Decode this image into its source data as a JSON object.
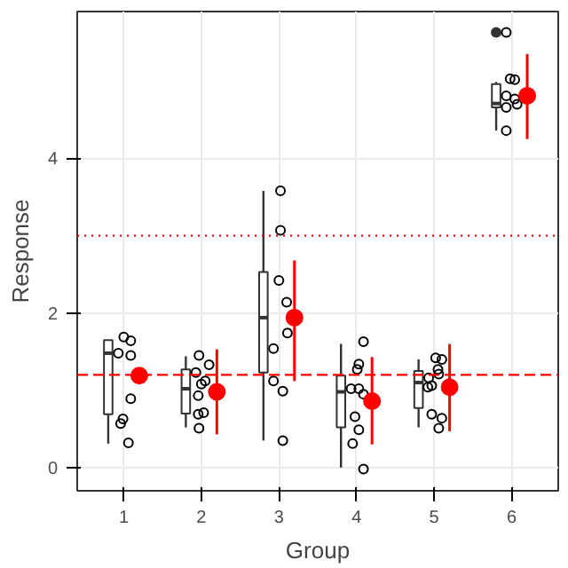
{
  "chart_data": {
    "type": "scatter",
    "xlabel": "Group",
    "ylabel": "Response",
    "xlim": [
      0.4,
      6.6
    ],
    "ylim": [
      -0.3,
      5.9
    ],
    "xticks": [
      1,
      2,
      3,
      4,
      5,
      6
    ],
    "yticks": [
      0,
      2,
      4
    ],
    "grid": true,
    "marker": "circle",
    "series": [
      {
        "type": "box",
        "color": "#333333",
        "x": [
          0.8,
          1.8,
          2.8,
          3.8,
          4.8,
          5.8
        ],
        "boxes": [
          {
            "low": 0.31,
            "q1": 0.69,
            "median": 1.48,
            "q3": 1.65,
            "high": 1.65
          },
          {
            "low": 0.52,
            "q1": 0.7,
            "median": 1.02,
            "q3": 1.27,
            "high": 1.44
          },
          {
            "low": 0.35,
            "q1": 1.23,
            "median": 1.94,
            "q3": 2.53,
            "high": 3.58
          },
          {
            "low": 0.0,
            "q1": 0.52,
            "median": 0.98,
            "q3": 1.19,
            "high": 1.6
          },
          {
            "low": 0.52,
            "q1": 0.77,
            "median": 1.1,
            "q3": 1.25,
            "high": 1.4
          },
          {
            "low": 4.36,
            "q1": 4.66,
            "median": 4.71,
            "q3": 4.96,
            "high": 4.99,
            "outliers": [
              5.63
            ]
          }
        ]
      },
      {
        "color": "#000000",
        "x": [
          0.93,
          1.0,
          1.09,
          1.09,
          1.09,
          0.96,
          0.99,
          1.06,
          1.97,
          2.1,
          1.93,
          2.05,
          2.0,
          1.96,
          1.96,
          2.03,
          1.97,
          3.02,
          3.02,
          3.0,
          3.1,
          3.11,
          2.93,
          2.93,
          3.05,
          3.05,
          4.09,
          4.03,
          4.01,
          3.93,
          4.03,
          4.09,
          3.98,
          4.03,
          3.95,
          4.09,
          5.02,
          5.1,
          5.05,
          4.93,
          5.06,
          4.97,
          4.92,
          4.97,
          5.1,
          5.06,
          5.93,
          5.98,
          6.04,
          5.93,
          6.04,
          6.07,
          5.93,
          5.93
        ],
        "values": [
          1.48,
          1.69,
          1.64,
          1.45,
          0.89,
          0.57,
          0.63,
          0.32,
          1.45,
          1.33,
          1.23,
          1.12,
          1.08,
          0.93,
          0.69,
          0.71,
          0.51,
          3.58,
          3.07,
          2.42,
          2.14,
          1.74,
          1.54,
          1.12,
          0.99,
          0.35,
          1.63,
          1.34,
          1.27,
          1.02,
          1.02,
          0.95,
          0.66,
          0.49,
          0.31,
          -0.02,
          1.42,
          1.4,
          1.27,
          1.16,
          1.21,
          1.06,
          1.04,
          0.69,
          0.64,
          0.51,
          5.63,
          5.03,
          5.02,
          4.81,
          4.77,
          4.7,
          4.66,
          4.36
        ]
      },
      {
        "color": "#ff0000",
        "x": [
          1.2,
          2.2,
          3.2,
          4.2,
          5.2,
          6.2
        ],
        "values": [
          1.19,
          0.98,
          1.94,
          0.86,
          1.04,
          4.81
        ],
        "errors": [
          null,
          [
            0.43,
            1.53
          ],
          [
            1.12,
            2.68
          ],
          [
            0.3,
            1.43
          ],
          [
            0.47,
            1.6
          ],
          [
            4.25,
            5.35
          ]
        ]
      }
    ],
    "ref_lines": [
      {
        "axis": "y",
        "value": 1.2,
        "color": "#ff0000",
        "line_style": "dashed"
      },
      {
        "axis": "y",
        "value": 3.0,
        "color": "#ff0000",
        "line_style": "dotted"
      }
    ]
  }
}
